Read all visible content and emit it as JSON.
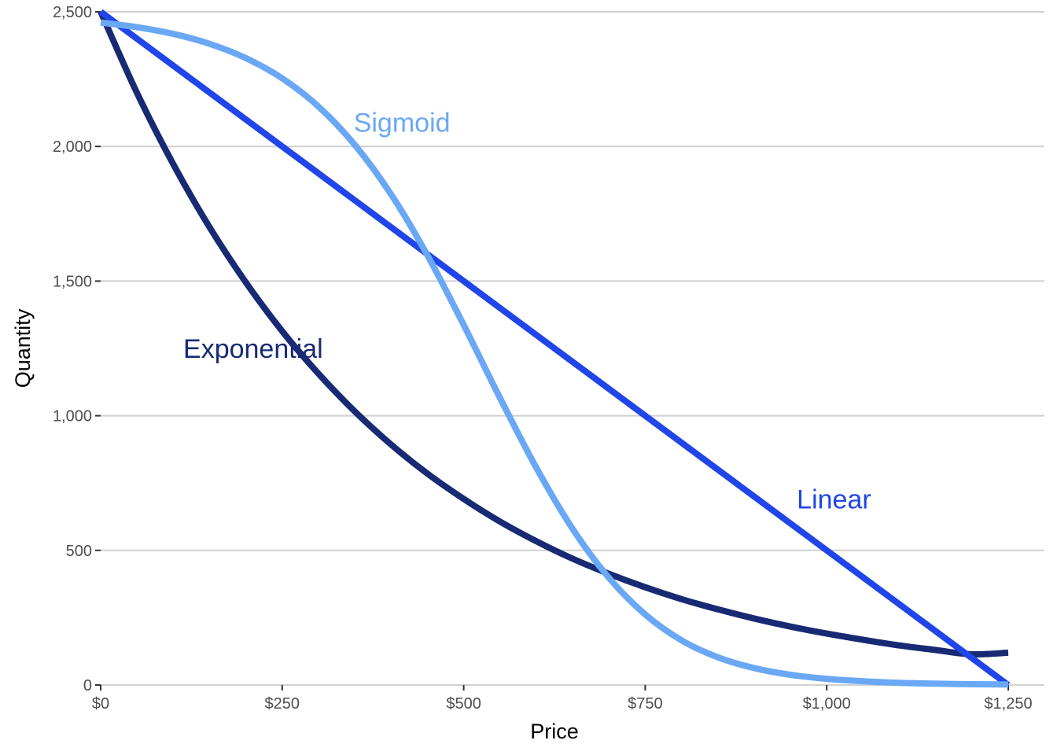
{
  "chart_data": {
    "type": "line",
    "xlabel": "Price",
    "ylabel": "Quantity",
    "xlim": [
      0,
      1250
    ],
    "ylim": [
      0,
      2500
    ],
    "x_ticks": [
      {
        "value": 0,
        "label": "$0"
      },
      {
        "value": 250,
        "label": "$250"
      },
      {
        "value": 500,
        "label": "$500"
      },
      {
        "value": 750,
        "label": "$750"
      },
      {
        "value": 1000,
        "label": "$1,000"
      },
      {
        "value": 1250,
        "label": "$1,250"
      }
    ],
    "y_ticks": [
      {
        "value": 0,
        "label": "0"
      },
      {
        "value": 500,
        "label": "500"
      },
      {
        "value": 1000,
        "label": "1,000"
      },
      {
        "value": 1500,
        "label": "1,500"
      },
      {
        "value": 2000,
        "label": "2,000"
      },
      {
        "value": 2500,
        "label": "2,500"
      }
    ],
    "grid": "horizontal major gridlines",
    "legend": "direct labels",
    "series": [
      {
        "name": "Exponential",
        "color": "#172a73",
        "label_anchor": {
          "x": 210,
          "y": 1250
        },
        "x": [
          0,
          50,
          100,
          150,
          200,
          250,
          300,
          350,
          400,
          450,
          500,
          550,
          600,
          650,
          700,
          750,
          800,
          850,
          900,
          950,
          1000,
          1050,
          1100,
          1150,
          1200,
          1250
        ],
        "y": [
          2500,
          2199,
          1934,
          1700,
          1495,
          1314,
          1156,
          1016,
          893,
          785,
          691,
          607,
          534,
          469,
          413,
          363,
          319,
          281,
          247,
          217,
          191,
          168,
          147,
          130,
          114,
          120
        ]
      },
      {
        "name": "Linear",
        "color": "#2045e8",
        "label_anchor": {
          "x": 1010,
          "y": 690
        },
        "x": [
          0,
          1250
        ],
        "y": [
          2500,
          0
        ]
      },
      {
        "name": "Sigmoid",
        "color": "#6aa8f5",
        "label_anchor": {
          "x": 415,
          "y": 2090
        },
        "x": [
          0,
          50,
          100,
          150,
          200,
          250,
          300,
          350,
          400,
          450,
          500,
          550,
          600,
          650,
          700,
          750,
          800,
          850,
          900,
          950,
          1000,
          1050,
          1100,
          1150,
          1200,
          1250
        ],
        "y": [
          2460,
          2443,
          2418,
          2381,
          2328,
          2253,
          2148,
          2006,
          1822,
          1596,
          1337,
          1066,
          807,
          580,
          398,
          262,
          166,
          103,
          63,
          38,
          23,
          14,
          8,
          5,
          3,
          2
        ]
      }
    ]
  }
}
